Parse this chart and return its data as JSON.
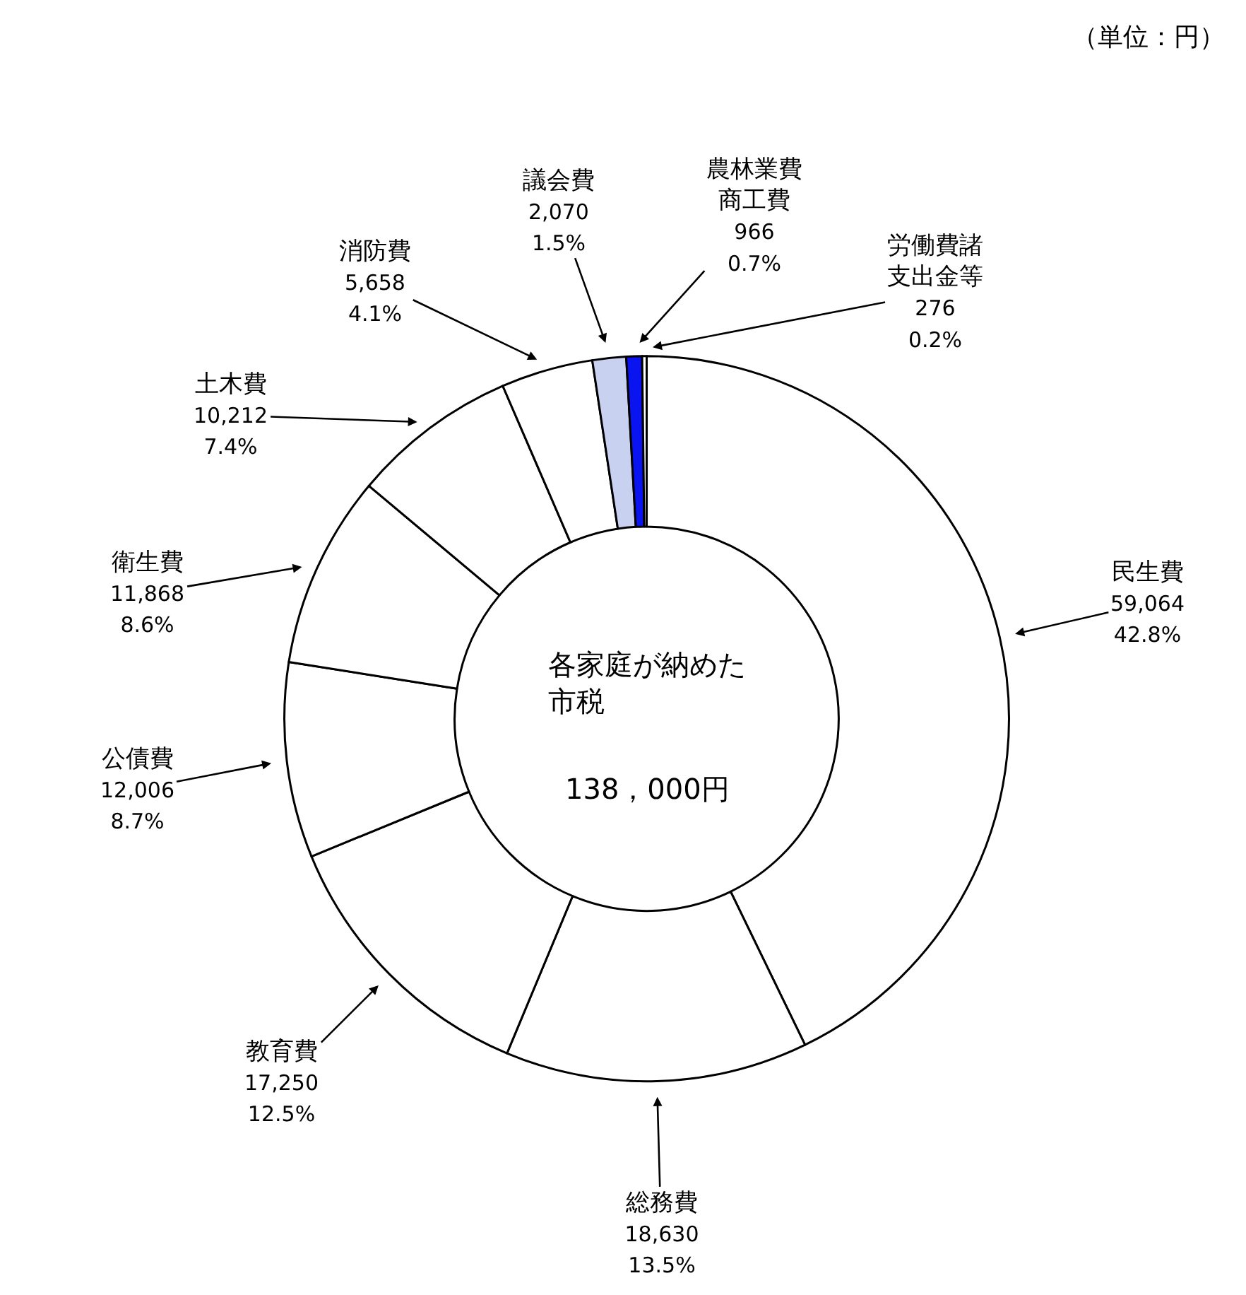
{
  "chart_data": {
    "type": "donut",
    "categories": [
      "民生費",
      "総務費",
      "教育費",
      "公債費",
      "衛生費",
      "土木費",
      "消防費",
      "議会費",
      "農林業費商工費",
      "労働費諸支出金等"
    ],
    "values": [
      59064,
      18630,
      17250,
      12006,
      11868,
      10212,
      5658,
      2070,
      966,
      276
    ],
    "colors": [
      "#ffffff",
      "#ffffff",
      "#ffffff",
      "#ffffff",
      "#ffffff",
      "#ffffff",
      "#ffffff",
      "#c8d2f0",
      "#0a14f0",
      "#ffffff"
    ],
    "value_labels": [
      "59,064\n42.8%",
      "18,630\n13.5%",
      "17,250\n12.5%",
      "12,006\n8.7%",
      "11,868\n8.6%",
      "10,212\n7.4%",
      "5,658\n4.1%",
      "2,070\n1.5%",
      "966\n0.7%",
      "276\n0.2%"
    ],
    "annotations": [
      "（単位：円）",
      "各家庭が納めた市税",
      "138，000円"
    ]
  }
}
